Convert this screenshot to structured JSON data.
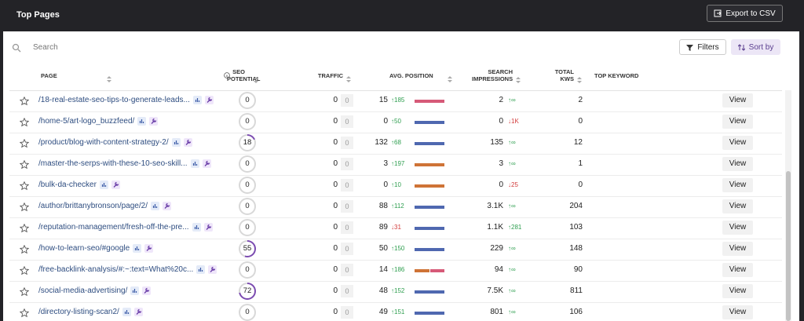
{
  "header": {
    "title": "Top Pages",
    "export_button": "Export to CSV"
  },
  "toolbar": {
    "search_placeholder": "Search",
    "filters_button": "Filters",
    "sort_button": "Sort by"
  },
  "table": {
    "columns": [
      "PAGE",
      "SEO POTENTIAL",
      "TRAFFIC",
      "AVG. POSITION",
      "SEARCH IMPRESSIONS",
      "TOTAL KWS",
      "TOP KEYWORD"
    ],
    "ring_color": "#7b4bb0",
    "rows": [
      {
        "page": "/18-real-estate-seo-tips-to-generate-leads...",
        "seo_potential": 0,
        "traffic": 0,
        "traffic_change": 0,
        "avg_position": 15,
        "position_change": "↑185",
        "position_bar_colors": [
          "#d65a78"
        ],
        "impressions": "2",
        "impressions_change": "↑∞",
        "total_kws": 2,
        "action": "View"
      },
      {
        "page": "/home-5/art-logo_buzzfeed/",
        "seo_potential": 0,
        "traffic": 0,
        "traffic_change": 0,
        "avg_position": 0,
        "position_change": "↑50",
        "position_bar_colors": [
          "#4f68b0"
        ],
        "impressions": "0",
        "impressions_change": "↓1K",
        "total_kws": 0,
        "action": "View"
      },
      {
        "page": "/product/blog-with-content-strategy-2/",
        "seo_potential": 18,
        "traffic": 0,
        "traffic_change": 0,
        "avg_position": 132,
        "position_change": "↑68",
        "position_bar_colors": [
          "#4f68b0"
        ],
        "impressions": "135",
        "impressions_change": "↑∞",
        "total_kws": 12,
        "action": "View"
      },
      {
        "page": "/master-the-serps-with-these-10-seo-skill...",
        "seo_potential": 0,
        "traffic": 0,
        "traffic_change": 0,
        "avg_position": 3,
        "position_change": "↑197",
        "position_bar_colors": [
          "#cf7336"
        ],
        "impressions": "3",
        "impressions_change": "↑∞",
        "total_kws": 1,
        "action": "View"
      },
      {
        "page": "/bulk-da-checker",
        "seo_potential": 0,
        "traffic": 0,
        "traffic_change": 0,
        "avg_position": 0,
        "position_change": "↑10",
        "position_bar_colors": [
          "#cf7336"
        ],
        "impressions": "0",
        "impressions_change": "↓25",
        "total_kws": 0,
        "action": "View"
      },
      {
        "page": "/author/brittanybronson/page/2/",
        "seo_potential": 0,
        "traffic": 0,
        "traffic_change": 0,
        "avg_position": 88,
        "position_change": "↑112",
        "position_bar_colors": [
          "#4f68b0"
        ],
        "impressions": "3.1K",
        "impressions_change": "↑∞",
        "total_kws": 204,
        "action": "View"
      },
      {
        "page": "/reputation-management/fresh-off-the-pre...",
        "seo_potential": 0,
        "traffic": 0,
        "traffic_change": 0,
        "avg_position": 89,
        "position_change": "↓31",
        "position_bar_colors": [
          "#4f68b0"
        ],
        "impressions": "1.1K",
        "impressions_change": "↑281",
        "total_kws": 103,
        "action": "View"
      },
      {
        "page": "/how-to-learn-seo/#google",
        "seo_potential": 55,
        "traffic": 0,
        "traffic_change": 0,
        "avg_position": 50,
        "position_change": "↑150",
        "position_bar_colors": [
          "#4f68b0"
        ],
        "impressions": "229",
        "impressions_change": "↑∞",
        "total_kws": 148,
        "action": "View"
      },
      {
        "page": "/free-backlink-analysis/#:~:text=What%20c...",
        "seo_potential": 0,
        "traffic": 0,
        "traffic_change": 0,
        "avg_position": 14,
        "position_change": "↑186",
        "position_bar_colors": [
          "#cf7336",
          "#d65a78"
        ],
        "impressions": "94",
        "impressions_change": "↑∞",
        "total_kws": 90,
        "action": "View"
      },
      {
        "page": "/social-media-advertising/",
        "seo_potential": 72,
        "traffic": 0,
        "traffic_change": 0,
        "avg_position": 48,
        "position_change": "↑152",
        "position_bar_colors": [
          "#4f68b0"
        ],
        "impressions": "7.5K",
        "impressions_change": "↑∞",
        "total_kws": 811,
        "action": "View"
      },
      {
        "page": "/directory-listing-scan2/",
        "seo_potential": 0,
        "traffic": 0,
        "traffic_change": 0,
        "avg_position": 49,
        "position_change": "↑151",
        "position_bar_colors": [
          "#4f68b0"
        ],
        "impressions": "801",
        "impressions_change": "↑∞",
        "total_kws": 106,
        "action": "View"
      }
    ]
  }
}
